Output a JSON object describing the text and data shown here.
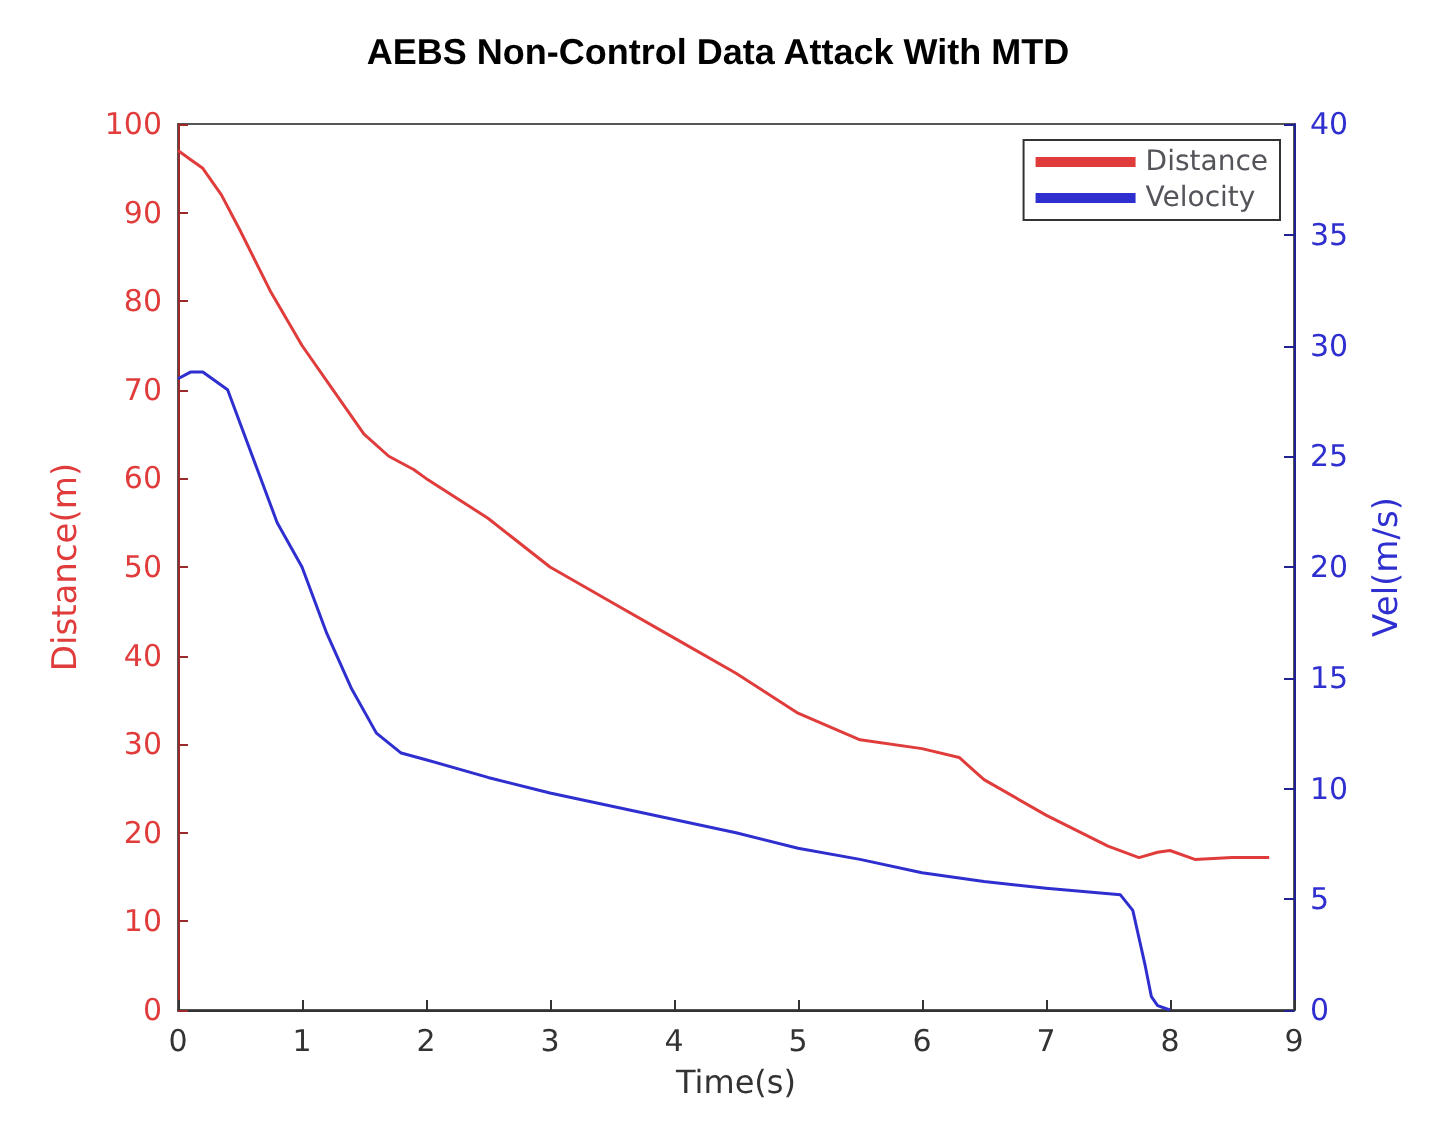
{
  "chart_data": {
    "type": "line",
    "title": "AEBS Non-Control Data Attack With MTD",
    "xlabel": "Time(s)",
    "ylabel": "Distance(m)",
    "y2label": "Vel(m/s)",
    "xlim": [
      0,
      9
    ],
    "xticks": [
      0,
      1,
      2,
      3,
      4,
      5,
      6,
      7,
      8,
      9
    ],
    "ylim": [
      0,
      100
    ],
    "yticks": [
      0,
      10,
      20,
      30,
      40,
      50,
      60,
      70,
      80,
      90,
      100
    ],
    "y2lim": [
      0,
      40
    ],
    "y2ticks": [
      0,
      5,
      10,
      15,
      20,
      25,
      30,
      35,
      40
    ],
    "legend": "top right",
    "grid": false,
    "marker": "none",
    "line_style": "solid",
    "series": [
      {
        "name": "Distance",
        "color": "#e03c3c",
        "x": [
          0,
          0.1,
          0.2,
          0.35,
          0.5,
          0.75,
          1,
          1.25,
          1.5,
          1.7,
          1.9,
          2,
          2.5,
          3,
          3.5,
          4,
          4.5,
          5,
          5.5,
          6,
          6.3,
          6.5,
          7,
          7.5,
          7.75,
          7.9,
          8,
          8.2,
          8.5,
          8.8
        ],
        "values": [
          97,
          96,
          95,
          92,
          88,
          81,
          75,
          70,
          65,
          62.5,
          61,
          60,
          55.5,
          50,
          46,
          42,
          38,
          33.5,
          30.5,
          29.5,
          28.5,
          26,
          22,
          18.5,
          17.2,
          17.8,
          18,
          17,
          17.2,
          17.2
        ]
      },
      {
        "name": "Velocity",
        "color": "#2f2fd0",
        "axis": "y2",
        "x": [
          0,
          0.1,
          0.2,
          0.4,
          0.6,
          0.8,
          1,
          1.2,
          1.4,
          1.6,
          1.8,
          2,
          2.5,
          3,
          3.5,
          4,
          4.5,
          5,
          5.5,
          6,
          6.5,
          7,
          7.6,
          7.7,
          7.8,
          7.85,
          7.9,
          8
        ],
        "values": [
          28.5,
          28.8,
          28.8,
          28,
          25,
          22,
          20,
          17,
          14.5,
          12.5,
          11.6,
          11.3,
          10.5,
          9.8,
          9.2,
          8.6,
          8,
          7.3,
          6.8,
          6.2,
          5.8,
          5.5,
          5.2,
          4.5,
          2,
          0.6,
          0.2,
          0
        ]
      }
    ]
  }
}
